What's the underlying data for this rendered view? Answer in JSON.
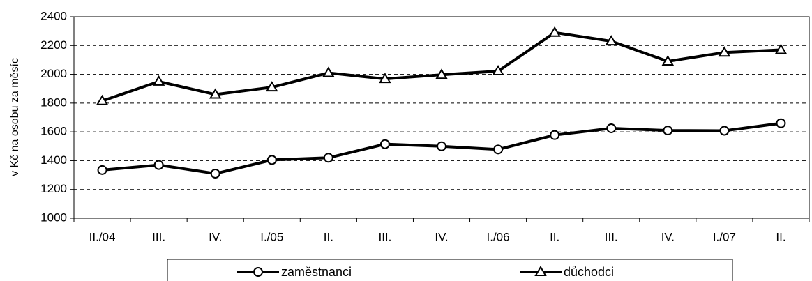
{
  "chart_data": {
    "type": "line",
    "y_label": "v Kč na osobu za měsíc",
    "categories": [
      "II./04",
      "III.",
      "IV.",
      "I./05",
      "II.",
      "III.",
      "IV.",
      "I./06",
      "II.",
      "III.",
      "IV.",
      "I./07",
      "II."
    ],
    "series": [
      {
        "name": "zaměstnanci",
        "color": "#000000",
        "marker": "circle",
        "values": [
          1335,
          1370,
          1310,
          1405,
          1420,
          1515,
          1500,
          1478,
          1578,
          1625,
          1610,
          1608,
          1660
        ]
      },
      {
        "name": "důchodci",
        "color": "#000000",
        "marker": "triangle",
        "values": [
          1815,
          1950,
          1860,
          1910,
          2010,
          1968,
          1997,
          2022,
          2290,
          2230,
          2090,
          2152,
          2170
        ]
      }
    ],
    "ylim": [
      1000,
      2400
    ],
    "yticks": [
      1000,
      1200,
      1400,
      1600,
      1800,
      2000,
      2200,
      2400
    ],
    "grid": true,
    "legend": "bottom"
  }
}
